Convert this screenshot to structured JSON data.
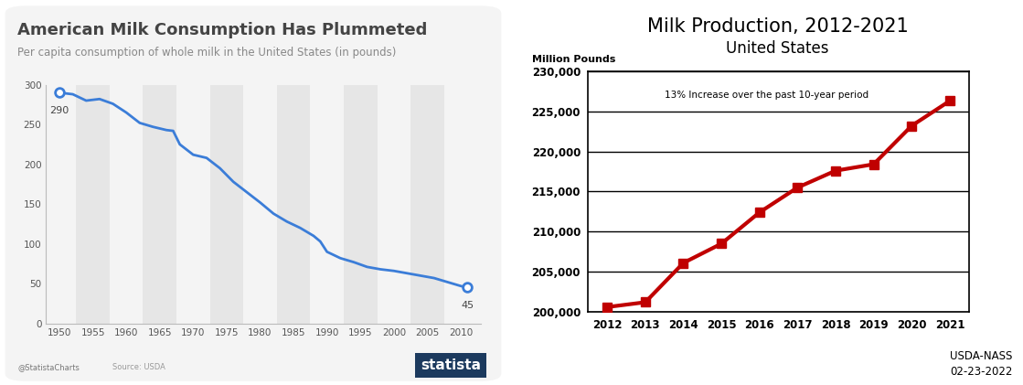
{
  "chart_data": [
    {
      "type": "line",
      "title": "American Milk Consumption Has Plummeted",
      "subtitle": "Per capita consumption of whole milk in the United States (in pounds)",
      "x": [
        1950,
        1952,
        1954,
        1956,
        1958,
        1960,
        1962,
        1964,
        1966,
        1967,
        1968,
        1970,
        1972,
        1974,
        1976,
        1978,
        1980,
        1982,
        1984,
        1986,
        1988,
        1989,
        1990,
        1992,
        1994,
        1996,
        1998,
        2000,
        2002,
        2004,
        2006,
        2008,
        2010,
        2011
      ],
      "values": [
        290,
        288,
        280,
        282,
        276,
        265,
        252,
        247,
        243,
        242,
        225,
        212,
        208,
        195,
        178,
        165,
        152,
        138,
        128,
        120,
        110,
        103,
        90,
        82,
        77,
        71,
        68,
        66,
        63,
        60,
        57,
        52,
        47,
        45
      ],
      "color": "#3b7dd8",
      "xlim": [
        1948,
        2013
      ],
      "xticks": [
        1950,
        1955,
        1960,
        1965,
        1970,
        1975,
        1980,
        1985,
        1990,
        1995,
        2000,
        2005,
        2010
      ],
      "ylim": [
        0,
        300
      ],
      "yticks": [
        0,
        50,
        100,
        150,
        200,
        250,
        300
      ],
      "grid": false,
      "annotations": [
        {
          "text": "290",
          "x": 1950,
          "y": 290
        },
        {
          "text": "45",
          "x": 2011,
          "y": 45
        }
      ],
      "credit": "@StatistaCharts",
      "source": "Source: USDA",
      "logo": "statista"
    },
    {
      "type": "line",
      "title": "Milk Production, 2012-2021",
      "subtitle": "United States",
      "y_label": "Million Pounds",
      "categories": [
        "2012",
        "2013",
        "2014",
        "2015",
        "2016",
        "2017",
        "2018",
        "2019",
        "2020",
        "2021"
      ],
      "values": [
        200600,
        201200,
        206100,
        208500,
        212400,
        215500,
        217600,
        218400,
        223200,
        226300
      ],
      "color": "#c00000",
      "marker": "square",
      "ylim": [
        200000,
        230000
      ],
      "yticks": [
        {
          "value": 200000,
          "label": "200,000"
        },
        {
          "value": 205000,
          "label": "205,000"
        },
        {
          "value": 210000,
          "label": "210,000"
        },
        {
          "value": 215000,
          "label": "215,000"
        },
        {
          "value": 220000,
          "label": "220,000"
        },
        {
          "value": 225000,
          "label": "225,000"
        },
        {
          "value": 230000,
          "label": "230,000"
        }
      ],
      "grid": true,
      "annotations": [
        {
          "text": "13% Increase over the past 10-year period"
        }
      ],
      "source": "USDA-NASS",
      "date": "02-23-2022"
    }
  ]
}
